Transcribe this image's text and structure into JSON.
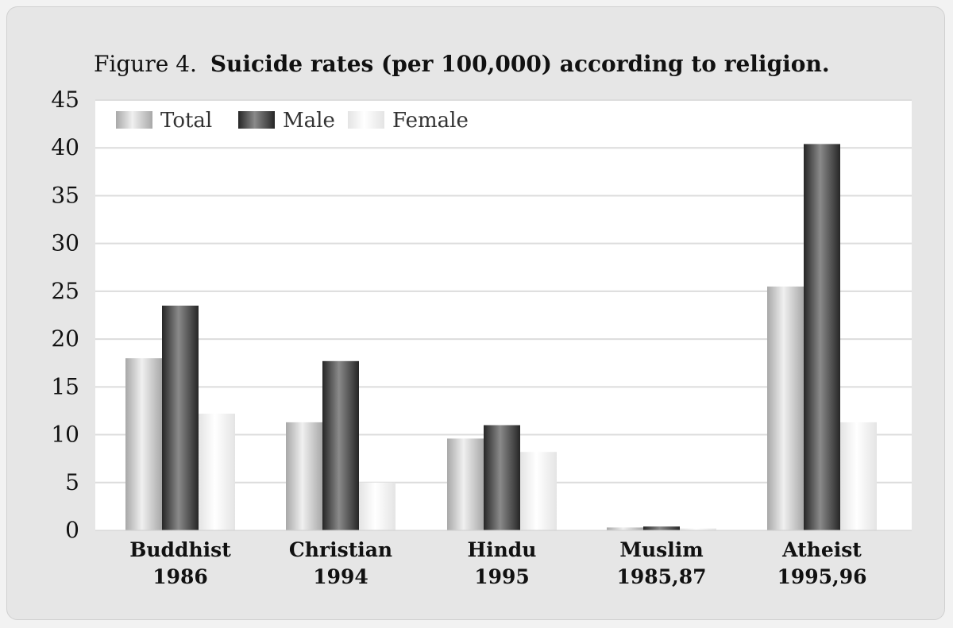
{
  "chart_data": {
    "type": "bar",
    "title_prefix": "Figure 4.",
    "title_main": "Suicide rates (per 100,000) according to religion.",
    "xlabel": "",
    "ylabel": "",
    "ylim": [
      0,
      45
    ],
    "yticks": [
      0,
      5,
      10,
      15,
      20,
      25,
      30,
      35,
      40,
      45
    ],
    "grid": true,
    "legend_position": "top-left",
    "categories": [
      {
        "name": "Buddhist",
        "year": "1986"
      },
      {
        "name": "Christian",
        "year": "1994"
      },
      {
        "name": "Hindu",
        "year": "1995"
      },
      {
        "name": "Muslim",
        "year": "1985,87"
      },
      {
        "name": "Atheist",
        "year": "1995,96"
      }
    ],
    "series": [
      {
        "name": "Total",
        "values": [
          18.0,
          11.3,
          9.6,
          0.3,
          25.5
        ]
      },
      {
        "name": "Male",
        "values": [
          23.5,
          17.7,
          11.0,
          0.4,
          40.4
        ]
      },
      {
        "name": "Female",
        "values": [
          12.2,
          5.0,
          8.2,
          0.2,
          11.3
        ]
      }
    ]
  },
  "colors": {
    "total_light": "#f0f0f0",
    "total_dark": "#a8a8a8",
    "male_light": "#8a8a8a",
    "male_dark": "#262626",
    "female_light": "#ffffff",
    "female_dark": "#e4e4e4",
    "plot_bg": "#ffffff",
    "grid": "#dcdcdc",
    "text": "#111111"
  }
}
